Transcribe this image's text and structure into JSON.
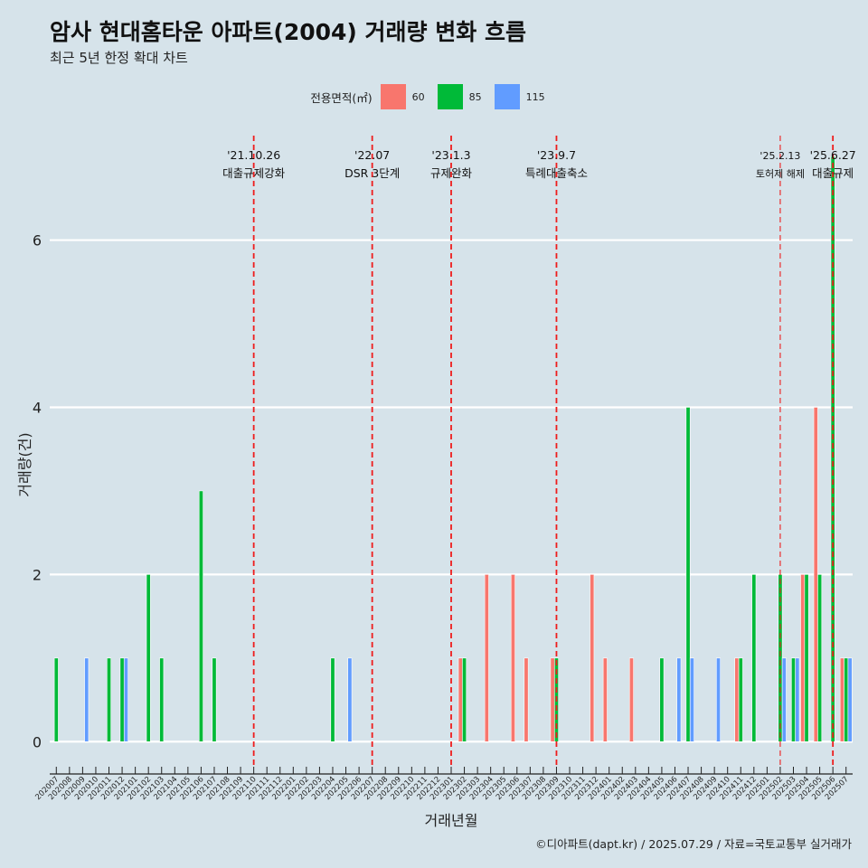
{
  "title": "암사 현대홈타운 아파트(2004) 거래량 변화 흐름",
  "subtitle": "최근 5년 한정 확대 차트",
  "caption": "©디아파트(dapt.kr) / 2025.07.29 / 자료=국토교통부 실거래가",
  "legend": {
    "title": "전용면적(㎡)",
    "placement": "top",
    "items": [
      {
        "label": "60",
        "color": "#f8766d"
      },
      {
        "label": "85",
        "color": "#00ba38"
      },
      {
        "label": "115",
        "color": "#619cff"
      }
    ]
  },
  "chart_data": {
    "type": "bar",
    "title": "암사 현대홈타운 아파트(2004) 거래량 변화 흐름",
    "subtitle": "최근 5년 한정 확대 차트",
    "xlabel": "거래년월",
    "ylabel": "거래량(건)",
    "ylim": [
      -0.3,
      7.25
    ],
    "yticks": [
      0,
      2,
      4,
      6
    ],
    "grid": "horizontal major lines",
    "categories": [
      "202007",
      "202008",
      "202009",
      "202010",
      "202011",
      "202012",
      "202101",
      "202102",
      "202103",
      "202104",
      "202105",
      "202106",
      "202107",
      "202108",
      "202109",
      "202110",
      "202111",
      "202112",
      "202201",
      "202202",
      "202203",
      "202204",
      "202205",
      "202206",
      "202207",
      "202208",
      "202209",
      "202210",
      "202211",
      "202212",
      "202301",
      "202302",
      "202303",
      "202304",
      "202305",
      "202306",
      "202307",
      "202308",
      "202309",
      "202310",
      "202311",
      "202312",
      "202401",
      "202402",
      "202403",
      "202404",
      "202405",
      "202406",
      "202407",
      "202408",
      "202409",
      "202410",
      "202411",
      "202412",
      "202501",
      "202502",
      "202503",
      "202504",
      "202505",
      "202506",
      "202507"
    ],
    "series": [
      {
        "name": "60",
        "color": "#f8766d",
        "values": [
          0,
          0,
          0,
          0,
          0,
          0,
          0,
          0,
          0,
          0,
          0,
          0,
          0,
          0,
          0,
          0,
          0,
          0,
          0,
          0,
          0,
          0,
          0,
          0,
          0,
          0,
          0,
          0,
          0,
          0,
          0,
          1,
          0,
          2,
          0,
          2,
          1,
          0,
          1,
          0,
          0,
          2,
          1,
          0,
          1,
          0,
          0,
          0,
          0,
          0,
          0,
          0,
          1,
          0,
          0,
          0,
          0,
          2,
          4,
          0,
          1
        ]
      },
      {
        "name": "85",
        "color": "#00ba38",
        "values": [
          1,
          0,
          0,
          0,
          1,
          1,
          0,
          2,
          1,
          0,
          0,
          3,
          1,
          0,
          0,
          0,
          0,
          0,
          0,
          0,
          0,
          1,
          0,
          0,
          0,
          0,
          0,
          0,
          0,
          0,
          0,
          1,
          0,
          0,
          0,
          0,
          0,
          0,
          1,
          0,
          0,
          0,
          0,
          0,
          0,
          0,
          1,
          0,
          4,
          0,
          0,
          0,
          1,
          2,
          0,
          2,
          1,
          2,
          2,
          7,
          1
        ]
      },
      {
        "name": "115",
        "color": "#619cff",
        "values": [
          0,
          0,
          1,
          0,
          0,
          1,
          0,
          0,
          0,
          0,
          0,
          0,
          0,
          0,
          0,
          0,
          0,
          0,
          0,
          0,
          0,
          0,
          1,
          0,
          0,
          0,
          0,
          0,
          0,
          0,
          0,
          0,
          0,
          0,
          0,
          0,
          0,
          0,
          0,
          0,
          0,
          0,
          0,
          0,
          0,
          0,
          0,
          1,
          1,
          0,
          1,
          0,
          0,
          0,
          0,
          1,
          1,
          0,
          0,
          0,
          1
        ]
      }
    ],
    "events": [
      {
        "date": "'21.10.26",
        "label": "대출규제강화",
        "x": "202110",
        "style": "thick"
      },
      {
        "date": "'22.07",
        "label": "DSR 3단계",
        "x": "202207",
        "style": "thick"
      },
      {
        "date": "'23.1.3",
        "label": "규제완화",
        "x": "202301",
        "style": "thick"
      },
      {
        "date": "'23.9.7",
        "label": "특례대출축소",
        "x": "202309",
        "style": "thick"
      },
      {
        "date": "'25.2.13",
        "label": "토허제 해제",
        "x": "202502",
        "style": "thin"
      },
      {
        "date": "'25.6.27",
        "label": "대출규제",
        "x": "202506",
        "style": "thick"
      }
    ]
  }
}
